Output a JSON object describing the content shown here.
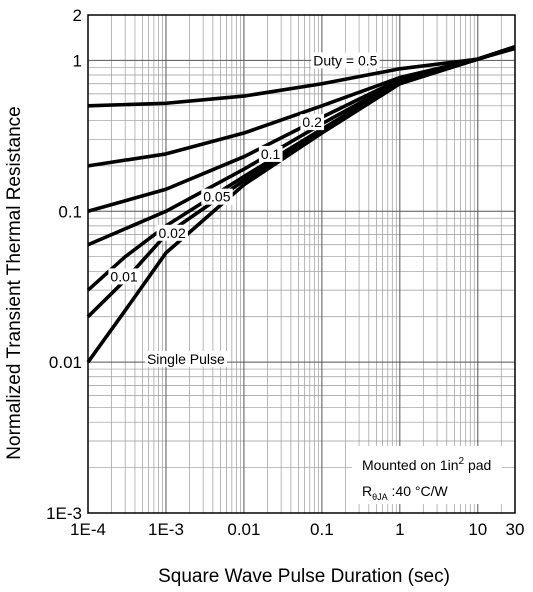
{
  "chart_data": {
    "type": "line",
    "title": "",
    "xlabel": "Square Wave Pulse Duration (sec)",
    "ylabel": "Normalized Transient Thermal Resistance",
    "x_scale": "log",
    "y_scale": "log",
    "xlim": [
      0.0001,
      30
    ],
    "ylim": [
      0.001,
      2
    ],
    "grid": true,
    "x_ticks": [
      {
        "value": 0.0001,
        "label": "1E-4"
      },
      {
        "value": 0.001,
        "label": "1E-3"
      },
      {
        "value": 0.01,
        "label": "0.01"
      },
      {
        "value": 0.1,
        "label": "0.1"
      },
      {
        "value": 1,
        "label": "1"
      },
      {
        "value": 10,
        "label": "10"
      },
      {
        "value": 30,
        "label": "30"
      }
    ],
    "y_ticks": [
      {
        "value": 0.001,
        "label": "1E-3"
      },
      {
        "value": 0.01,
        "label": "0.01"
      },
      {
        "value": 0.1,
        "label": "0.1"
      },
      {
        "value": 1,
        "label": "1"
      },
      {
        "value": 2,
        "label": "2"
      }
    ],
    "series": [
      {
        "name": "Duty = 0.5",
        "label_at": [
          0.2,
          1.0
        ],
        "points": [
          [
            0.0001,
            0.5
          ],
          [
            0.001,
            0.52
          ],
          [
            0.01,
            0.58
          ],
          [
            0.1,
            0.7
          ],
          [
            1,
            0.88
          ],
          [
            10,
            1.02
          ],
          [
            30,
            1.2
          ]
        ]
      },
      {
        "name": "0.2",
        "label_at": [
          0.075,
          0.39
        ],
        "points": [
          [
            0.0001,
            0.2
          ],
          [
            0.001,
            0.24
          ],
          [
            0.01,
            0.33
          ],
          [
            0.1,
            0.5
          ],
          [
            1,
            0.77
          ],
          [
            10,
            1.02
          ],
          [
            30,
            1.22
          ]
        ]
      },
      {
        "name": "0.1",
        "label_at": [
          0.022,
          0.24
        ],
        "points": [
          [
            0.0001,
            0.1
          ],
          [
            0.001,
            0.14
          ],
          [
            0.01,
            0.23
          ],
          [
            0.1,
            0.42
          ],
          [
            1,
            0.75
          ],
          [
            10,
            1.02
          ],
          [
            30,
            1.22
          ]
        ]
      },
      {
        "name": "0.05",
        "label_at": [
          0.0045,
          0.125
        ],
        "points": [
          [
            0.0001,
            0.06
          ],
          [
            0.001,
            0.1
          ],
          [
            0.01,
            0.19
          ],
          [
            0.1,
            0.38
          ],
          [
            1,
            0.73
          ],
          [
            10,
            1.02
          ],
          [
            30,
            1.23
          ]
        ]
      },
      {
        "name": "0.02",
        "label_at": [
          0.0012,
          0.072
        ],
        "points": [
          [
            0.0001,
            0.03
          ],
          [
            0.0003,
            0.05
          ],
          [
            0.001,
            0.08
          ],
          [
            0.01,
            0.17
          ],
          [
            0.1,
            0.35
          ],
          [
            1,
            0.72
          ],
          [
            10,
            1.02
          ],
          [
            30,
            1.23
          ]
        ]
      },
      {
        "name": "0.01",
        "label_at": [
          0.00029,
          0.037
        ],
        "points": [
          [
            0.0001,
            0.02
          ],
          [
            0.0003,
            0.035
          ],
          [
            0.001,
            0.07
          ],
          [
            0.01,
            0.16
          ],
          [
            0.1,
            0.34
          ],
          [
            1,
            0.71
          ],
          [
            10,
            1.02
          ],
          [
            30,
            1.23
          ]
        ]
      },
      {
        "name": "Single Pulse",
        "label_at": [
          0.0018,
          0.0105
        ],
        "points": [
          [
            0.0001,
            0.01
          ],
          [
            0.0003,
            0.022
          ],
          [
            0.001,
            0.053
          ],
          [
            0.01,
            0.15
          ],
          [
            0.1,
            0.33
          ],
          [
            1,
            0.7
          ],
          [
            10,
            1.02
          ],
          [
            30,
            1.23
          ]
        ]
      }
    ],
    "annotation": {
      "line1_prefix": "Mounted on 1in",
      "line1_sup": "2",
      "line1_suffix": " pad",
      "line2_main": "R",
      "line2_sub": "θJA",
      "line2_suffix": " :40 °C/W"
    }
  }
}
